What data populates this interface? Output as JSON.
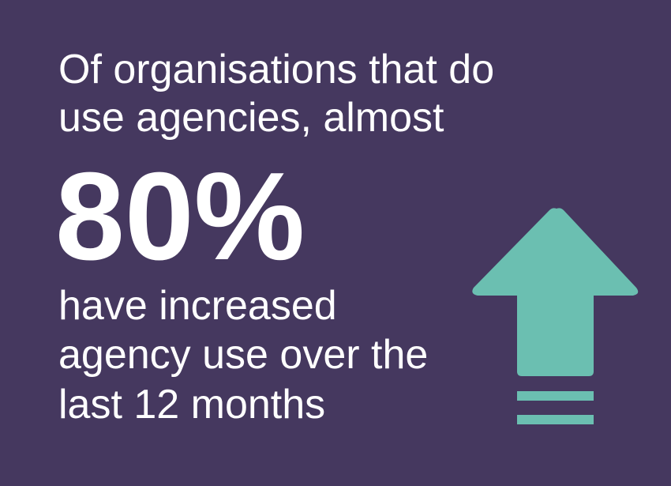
{
  "headline": {
    "lines": [
      "Of organisations that do",
      "use agencies, almost"
    ]
  },
  "stat": "80%",
  "caption": {
    "lines": [
      "have increased",
      "agency use over the",
      "last 12 months"
    ]
  }
}
